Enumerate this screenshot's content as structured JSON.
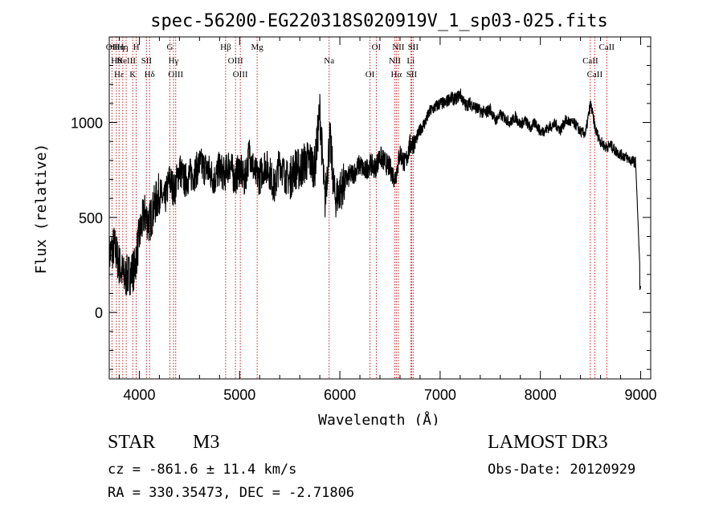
{
  "chart_data": {
    "type": "line",
    "title": "spec-56200-EG220318S020919V_1_sp03-025.fits",
    "xlabel": "Wavelength (Å)",
    "ylabel": "Flux (relative)",
    "xlim": [
      3700,
      9100
    ],
    "ylim": [
      -350,
      1450
    ],
    "xticks": [
      4000,
      5000,
      6000,
      7000,
      8000,
      9000
    ],
    "yticks": [
      0,
      500,
      1000
    ],
    "grid": false,
    "series": [
      {
        "x": [
          3700,
          3750,
          3800,
          3850,
          3900,
          3950,
          4000,
          4050,
          4100,
          4150,
          4200,
          4250,
          4300,
          4350,
          4400,
          4450,
          4500,
          4550,
          4600,
          4650,
          4700,
          4750,
          4800,
          4850,
          4900,
          4950,
          5000,
          5050,
          5100,
          5150,
          5200,
          5250,
          5300,
          5350,
          5400,
          5450,
          5500,
          5550,
          5600,
          5650,
          5700,
          5750,
          5800,
          5850,
          5900,
          5950,
          6000,
          6050,
          6100,
          6150,
          6200,
          6250,
          6300,
          6350,
          6400,
          6450,
          6500,
          6550,
          6600,
          6650,
          6700,
          6750,
          6800,
          6850,
          6900,
          6950,
          7000,
          7050,
          7100,
          7150,
          7200,
          7250,
          7300,
          7350,
          7400,
          7450,
          7500,
          7550,
          7600,
          7650,
          7700,
          7750,
          7800,
          7850,
          7900,
          7950,
          8000,
          8050,
          8100,
          8150,
          8200,
          8250,
          8300,
          8350,
          8400,
          8450,
          8500,
          8550,
          8600,
          8650,
          8700,
          8750,
          8800,
          8850,
          8900,
          8950,
          9000
        ],
        "values": [
          300,
          350,
          250,
          180,
          200,
          230,
          400,
          520,
          470,
          560,
          630,
          580,
          700,
          640,
          760,
          690,
          720,
          730,
          780,
          760,
          740,
          700,
          760,
          720,
          790,
          700,
          760,
          690,
          850,
          730,
          710,
          780,
          740,
          650,
          800,
          720,
          700,
          760,
          750,
          790,
          800,
          760,
          1060,
          580,
          920,
          600,
          640,
          690,
          720,
          740,
          780,
          740,
          780,
          760,
          820,
          790,
          760,
          700,
          840,
          780,
          880,
          900,
          960,
          1000,
          1060,
          1080,
          1100,
          1100,
          1130,
          1120,
          1150,
          1090,
          1100,
          1080,
          1060,
          1050,
          1070,
          1010,
          1040,
          1020,
          1000,
          1030,
          990,
          1010,
          970,
          1000,
          950,
          960,
          980,
          990,
          960,
          1010,
          1000,
          990,
          950,
          940,
          1100,
          960,
          900,
          870,
          880,
          850,
          830,
          820,
          800,
          790,
          120
        ]
      }
    ],
    "lines": [
      {
        "wavelength": 3727,
        "labels": [
          "OII"
        ]
      },
      {
        "wavelength": 3771,
        "labels": [
          "Hθ"
        ]
      },
      {
        "wavelength": 3798,
        "labels": [
          "Hε",
          "Hη"
        ]
      },
      {
        "wavelength": 3835,
        "labels": [
          "Hη"
        ]
      },
      {
        "wavelength": 3869,
        "labels": [
          "NeIII"
        ]
      },
      {
        "wavelength": 3934,
        "labels": [
          "K"
        ]
      },
      {
        "wavelength": 3969,
        "labels": [
          "H"
        ]
      },
      {
        "wavelength": 4071,
        "labels": [
          "SII"
        ]
      },
      {
        "wavelength": 4102,
        "labels": [
          "Hδ"
        ]
      },
      {
        "wavelength": 4305,
        "labels": [
          "G"
        ]
      },
      {
        "wavelength": 4341,
        "labels": [
          "Hγ"
        ]
      },
      {
        "wavelength": 4363,
        "labels": [
          "OIII"
        ]
      },
      {
        "wavelength": 4861,
        "labels": [
          "Hβ"
        ]
      },
      {
        "wavelength": 4959,
        "labels": [
          "OIII"
        ]
      },
      {
        "wavelength": 5007,
        "labels": [
          "OIII"
        ]
      },
      {
        "wavelength": 5175,
        "labels": [
          "Mg"
        ]
      },
      {
        "wavelength": 5893,
        "labels": [
          "Na"
        ]
      },
      {
        "wavelength": 6300,
        "labels": [
          "OI"
        ]
      },
      {
        "wavelength": 6363,
        "labels": [
          "OI"
        ]
      },
      {
        "wavelength": 6548,
        "labels": [
          "NII"
        ]
      },
      {
        "wavelength": 6563,
        "labels": [
          "Hα"
        ]
      },
      {
        "wavelength": 6583,
        "labels": [
          "NII"
        ]
      },
      {
        "wavelength": 6707,
        "labels": [
          "Li"
        ]
      },
      {
        "wavelength": 6716,
        "labels": [
          "SII"
        ]
      },
      {
        "wavelength": 6731,
        "labels": [
          "SII"
        ]
      },
      {
        "wavelength": 8498,
        "labels": [
          "CaII"
        ]
      },
      {
        "wavelength": 8542,
        "labels": [
          "CaII"
        ]
      },
      {
        "wavelength": 8662,
        "labels": [
          "CaII"
        ]
      }
    ],
    "colors": {
      "spectrum": "#000000",
      "line_markers": "#cc0000"
    }
  },
  "info": {
    "class": "STAR",
    "subclass": "M3",
    "survey": "LAMOST DR3",
    "velocity": "cz = -861.6 ± 11.4 km/s",
    "obsdate": "Obs-Date: 20120929",
    "coords": "RA = 330.35473, DEC =  -2.71806"
  }
}
